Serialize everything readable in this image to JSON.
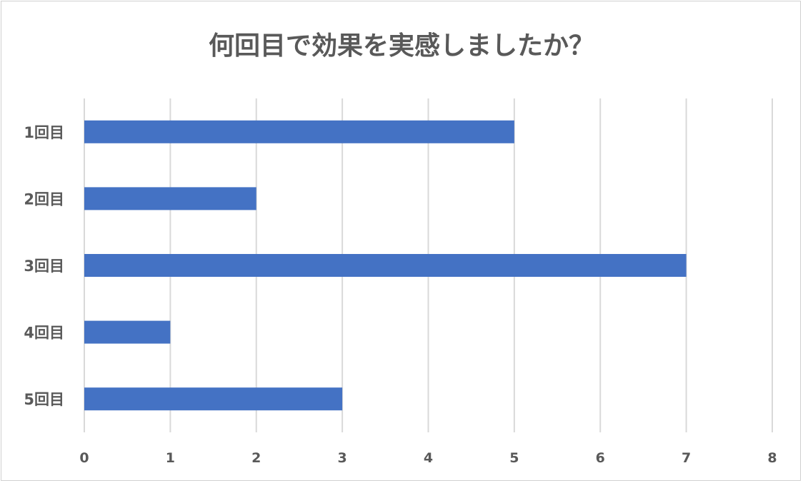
{
  "chart_data": {
    "type": "bar",
    "orientation": "horizontal",
    "title": "何回目で効果を実感しましたか？",
    "xlabel": "",
    "ylabel": "",
    "categories": [
      "1回目",
      "2回目",
      "3回目",
      "4回目",
      "5回目"
    ],
    "values": [
      5,
      2,
      7,
      1,
      3
    ],
    "xlim": [
      0,
      8
    ],
    "xticks": [
      "0",
      "1",
      "2",
      "3",
      "4",
      "5",
      "6",
      "7",
      "8"
    ],
    "grid": true,
    "legend": "none",
    "bar_color": "#4472C4"
  }
}
